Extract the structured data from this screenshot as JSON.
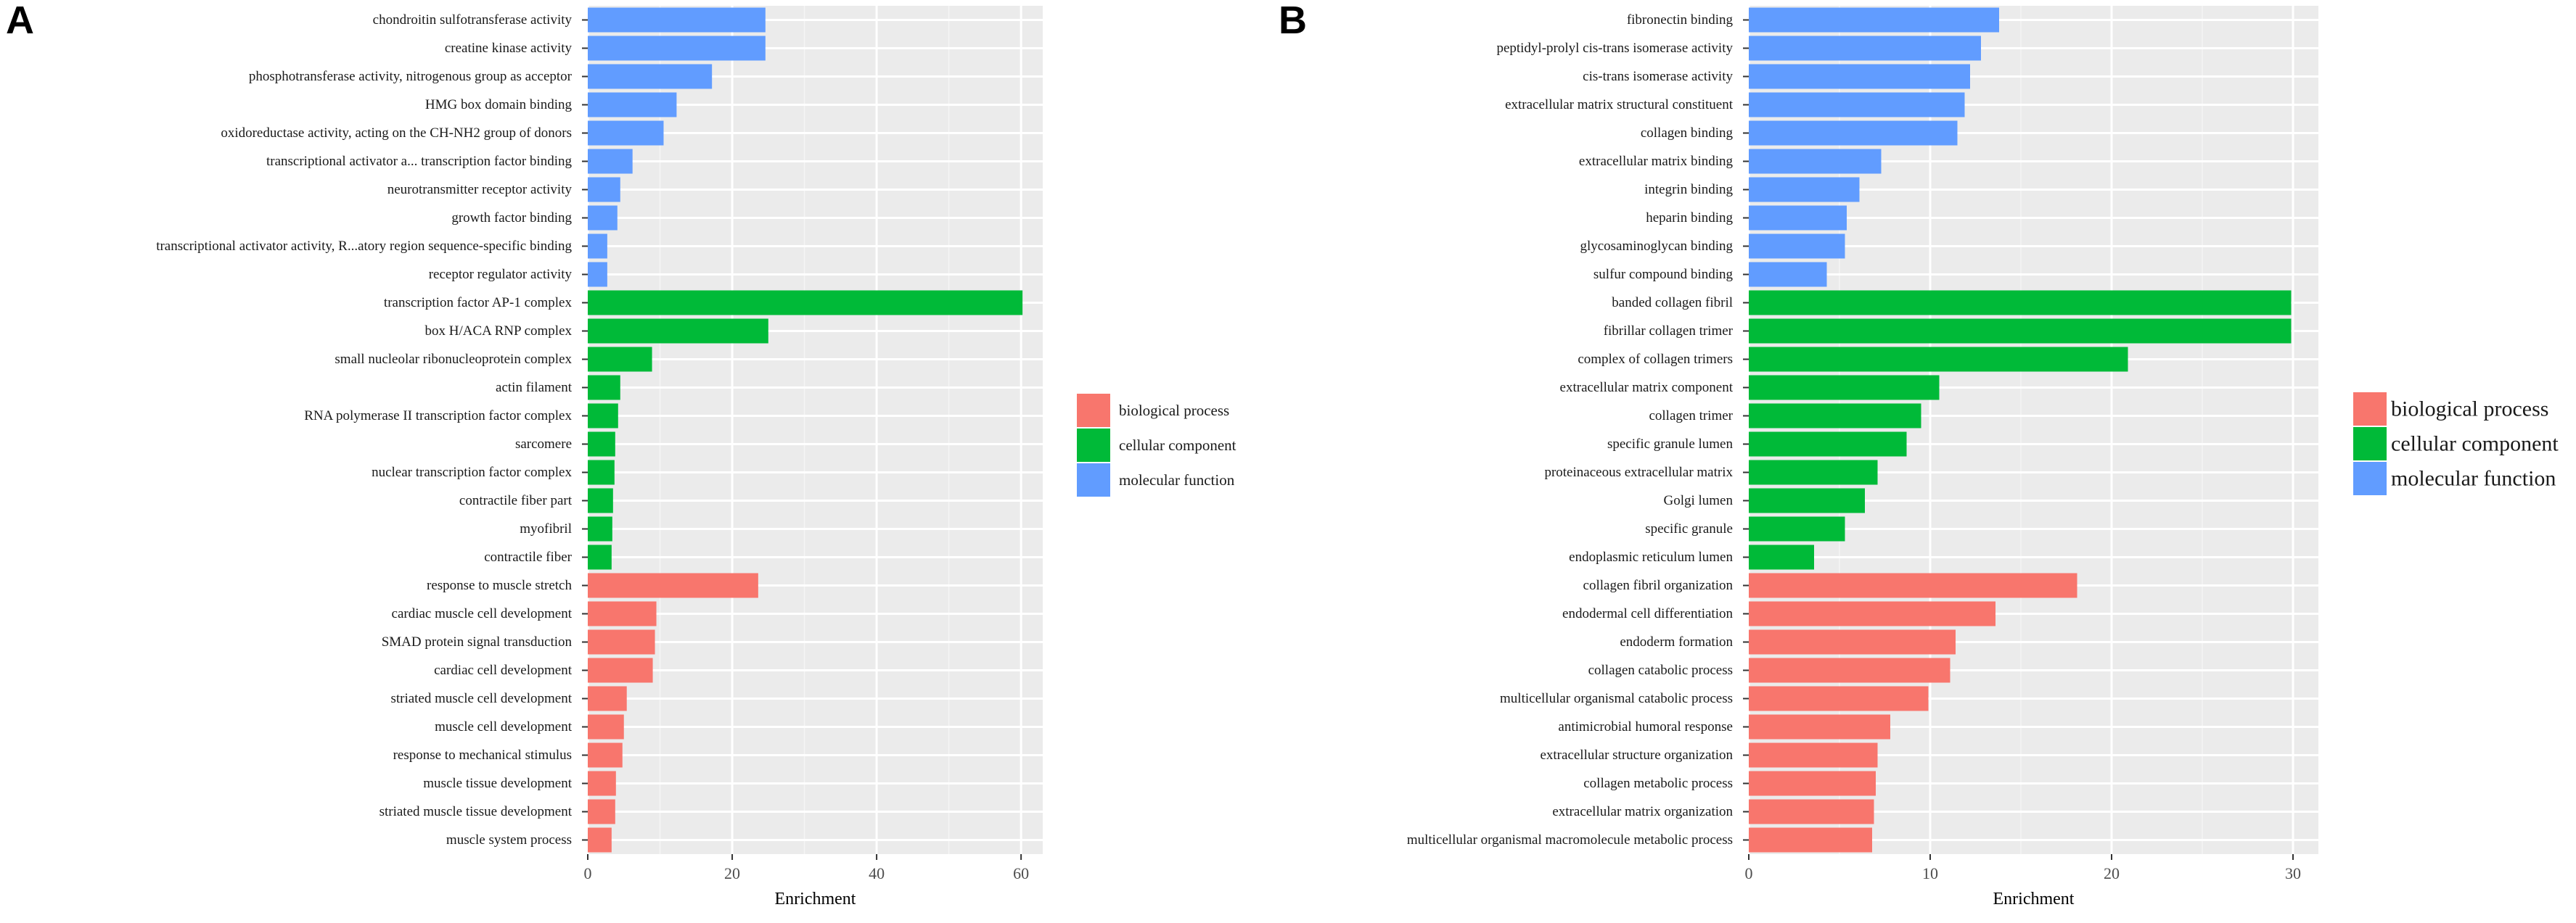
{
  "colors": {
    "biological process": "#F8766D",
    "cellular component": "#00BA38",
    "molecular function": "#619CFF",
    "panel_bg": "#EBEBEB",
    "grid": "#FFFFFF"
  },
  "legend": {
    "items": [
      "biological process",
      "cellular component",
      "molecular function"
    ]
  },
  "chart_data": [
    {
      "panel": "A",
      "type": "bar",
      "orientation": "horizontal",
      "xlabel": "Enrichment",
      "ylabel": "",
      "xlim": [
        0,
        63
      ],
      "xticks": [
        0,
        20,
        40,
        60
      ],
      "legend_position": "right",
      "categories": [
        "chondroitin sulfotransferase activity",
        "creatine kinase activity",
        "phosphotransferase activity, nitrogenous group as acceptor",
        "HMG box domain binding",
        "oxidoreductase activity, acting on the CH-NH2 group of donors",
        "transcriptional activator a... transcription factor binding",
        "neurotransmitter receptor activity",
        "growth factor binding",
        "transcriptional activator activity, R...atory region sequence-specific binding",
        "receptor regulator activity",
        "transcription factor AP-1 complex",
        "box H/ACA RNP complex",
        "small nucleolar ribonucleoprotein complex",
        "actin filament",
        "RNA polymerase II transcription factor complex",
        "sarcomere",
        "nuclear transcription factor complex",
        "contractile fiber part",
        "myofibril",
        "contractile fiber",
        "response to muscle stretch",
        "cardiac muscle cell development",
        "SMAD protein signal transduction",
        "cardiac cell development",
        "striated muscle cell development",
        "muscle cell development",
        "response to mechanical stimulus",
        "muscle tissue development",
        "striated muscle tissue development",
        "muscle system process"
      ],
      "values": [
        24.6,
        24.6,
        17.2,
        12.3,
        10.5,
        6.2,
        4.5,
        4.1,
        2.7,
        2.7,
        60.2,
        25.0,
        8.9,
        4.5,
        4.2,
        3.8,
        3.7,
        3.5,
        3.4,
        3.3,
        23.6,
        9.5,
        9.3,
        9.0,
        5.4,
        5.0,
        4.8,
        3.9,
        3.8,
        3.3
      ],
      "groups": [
        "molecular function",
        "molecular function",
        "molecular function",
        "molecular function",
        "molecular function",
        "molecular function",
        "molecular function",
        "molecular function",
        "molecular function",
        "molecular function",
        "cellular component",
        "cellular component",
        "cellular component",
        "cellular component",
        "cellular component",
        "cellular component",
        "cellular component",
        "cellular component",
        "cellular component",
        "cellular component",
        "biological process",
        "biological process",
        "biological process",
        "biological process",
        "biological process",
        "biological process",
        "biological process",
        "biological process",
        "biological process",
        "biological process"
      ]
    },
    {
      "panel": "B",
      "type": "bar",
      "orientation": "horizontal",
      "xlabel": "Enrichment",
      "ylabel": "",
      "xlim": [
        0,
        31.4
      ],
      "xticks": [
        0,
        10,
        20,
        30
      ],
      "legend_position": "right",
      "categories": [
        "fibronectin binding",
        "peptidyl-prolyl cis-trans isomerase activity",
        "cis-trans isomerase activity",
        "extracellular matrix structural constituent",
        "collagen binding",
        "extracellular matrix binding",
        "integrin binding",
        "heparin binding",
        "glycosaminoglycan binding",
        "sulfur compound binding",
        "banded collagen fibril",
        "fibrillar collagen trimer",
        "complex of collagen trimers",
        "extracellular matrix component",
        "collagen trimer",
        "specific granule lumen",
        "proteinaceous extracellular matrix",
        "Golgi lumen",
        "specific granule",
        "endoplasmic reticulum lumen",
        "collagen fibril organization",
        "endodermal cell differentiation",
        "endoderm formation",
        "collagen catabolic process",
        "multicellular organismal catabolic process",
        "antimicrobial humoral response",
        "extracellular structure organization",
        "collagen metabolic process",
        "extracellular matrix organization",
        "multicellular organismal macromolecule metabolic process"
      ],
      "values": [
        13.8,
        12.8,
        12.2,
        11.9,
        11.5,
        7.3,
        6.1,
        5.4,
        5.3,
        4.3,
        29.9,
        29.9,
        20.9,
        10.5,
        9.5,
        8.7,
        7.1,
        6.4,
        5.3,
        3.6,
        18.1,
        13.6,
        11.4,
        11.1,
        9.9,
        7.8,
        7.1,
        7.0,
        6.9,
        6.8
      ],
      "groups": [
        "molecular function",
        "molecular function",
        "molecular function",
        "molecular function",
        "molecular function",
        "molecular function",
        "molecular function",
        "molecular function",
        "molecular function",
        "molecular function",
        "cellular component",
        "cellular component",
        "cellular component",
        "cellular component",
        "cellular component",
        "cellular component",
        "cellular component",
        "cellular component",
        "cellular component",
        "cellular component",
        "biological process",
        "biological process",
        "biological process",
        "biological process",
        "biological process",
        "biological process",
        "biological process",
        "biological process",
        "biological process",
        "biological process"
      ]
    }
  ]
}
